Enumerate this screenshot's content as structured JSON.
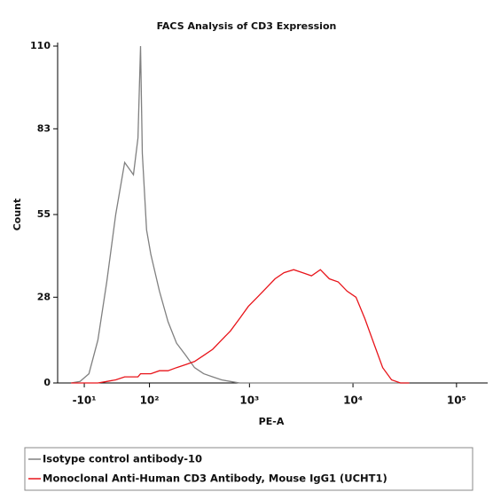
{
  "chart_data": {
    "type": "line",
    "title": "FACS Analysis of CD3 Expression",
    "x_label": "PE-A",
    "y_label": "Count",
    "xscale": "asinh",
    "x": [
      -28.5,
      -15.8,
      -3.7,
      8.2,
      20.4,
      33.5,
      47.9,
      64,
      73.2,
      78.7,
      82.6,
      92.6,
      103.6,
      128.6,
      158,
      193,
      239,
      292,
      359,
      440,
      537,
      655,
      800,
      976,
      1190,
      1450,
      1768,
      2156,
      2676,
      3262,
      3975,
      4844,
      5905,
      7196,
      8770,
      10690,
      13030,
      15880,
      19350,
      23580,
      28740,
      35030
    ],
    "series": [
      {
        "name": "Isotype control antibody-10",
        "color": "#808080",
        "values": [
          0,
          0.5,
          3,
          14,
          33,
          55,
          72,
          68,
          80,
          110,
          75,
          50,
          42,
          30,
          20,
          13,
          9,
          5,
          3,
          2,
          1,
          0.5,
          0,
          0,
          0,
          0,
          0,
          0,
          0,
          0,
          0,
          0,
          0,
          0,
          0,
          0,
          0,
          0,
          0,
          0,
          0,
          0
        ]
      },
      {
        "name": "Monoclonal Anti-Human CD3 Antibody, Mouse IgG1 (UCHT1)",
        "color": "#e8141a",
        "values": [
          0,
          0,
          0,
          0,
          0.5,
          1,
          2,
          2,
          2,
          3,
          3,
          3,
          3,
          4,
          4,
          5,
          6,
          7,
          9,
          11,
          14,
          17,
          21,
          25,
          28,
          31,
          34,
          36,
          37,
          36,
          35,
          37,
          34,
          33,
          30,
          28,
          21,
          13,
          5,
          1,
          0,
          0
        ]
      }
    ],
    "xlim": [
      -50,
      200000
    ],
    "xticks": [
      {
        "value": -10,
        "label": "-10¹"
      },
      {
        "value": 100,
        "label": "10²"
      },
      {
        "value": 1000,
        "label": "10³"
      },
      {
        "value": 10000,
        "label": "10⁴"
      },
      {
        "value": 100000,
        "label": "10⁵"
      }
    ],
    "ylim": [
      0,
      110
    ],
    "yticks": [
      0,
      28,
      55,
      83,
      110
    ]
  }
}
